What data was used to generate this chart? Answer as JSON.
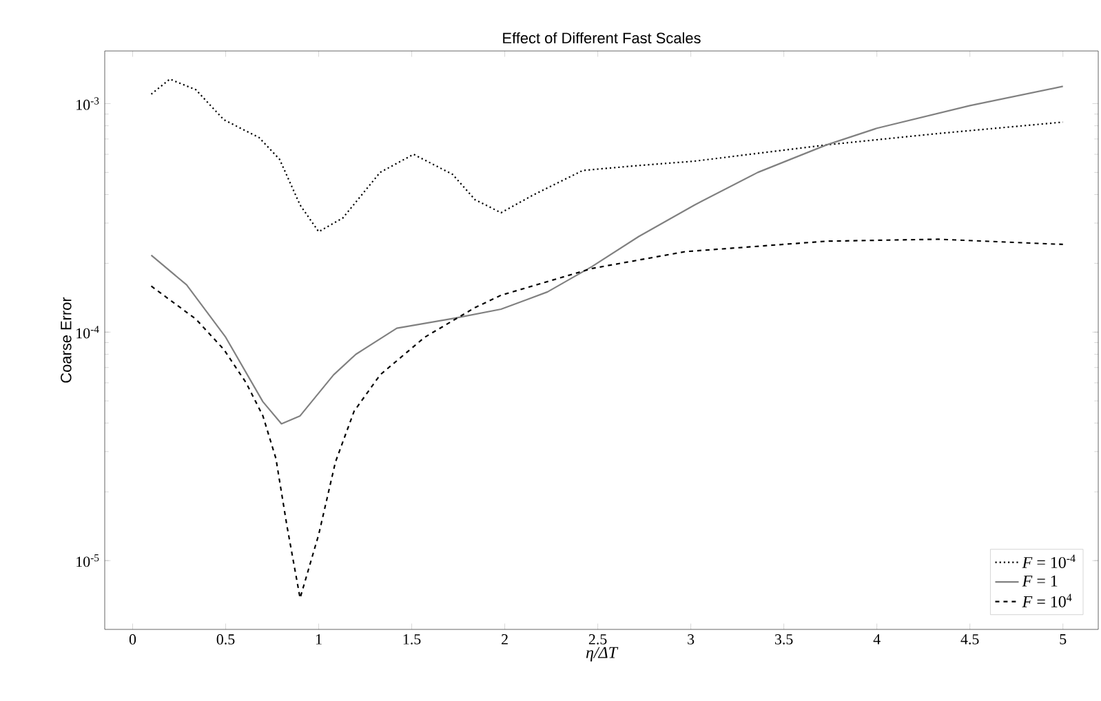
{
  "chart_data": {
    "type": "line",
    "title": "Effect of Different Fast Scales",
    "xlabel": "η/ΔT",
    "ylabel": "Coarse Error",
    "xlim": [
      -0.15,
      5.19
    ],
    "ylim": [
      5e-06,
      0.0017
    ],
    "xticks": [
      0,
      0.5,
      1,
      1.5,
      2,
      2.5,
      3,
      3.5,
      4,
      4.5,
      5
    ],
    "yticks": [
      {
        "value": 1e-05,
        "label": "10$^{-5}$"
      },
      {
        "value": 0.0001,
        "label": "10$^{-4}$"
      },
      {
        "value": 0.001,
        "label": "10$^{-3}$"
      }
    ],
    "log": "y",
    "legend": "bottom right",
    "series": [
      {
        "name": "*F* = 10$^{-4}$",
        "color": "#000000",
        "line_style": "dotted",
        "x": [
          0.1,
          0.2,
          0.34,
          0.49,
          0.68,
          0.79,
          0.9,
          1.0,
          1.13,
          1.33,
          1.51,
          1.72,
          1.84,
          1.98,
          2.15,
          2.42,
          2.72,
          3.02,
          3.73,
          4.33,
          5.0
        ],
        "values": [
          0.0011,
          0.00128,
          0.00115,
          0.00085,
          0.00071,
          0.00057,
          0.00036,
          0.000275,
          0.000316,
          0.0005,
          0.0006,
          0.00049,
          0.00038,
          0.000333,
          0.000397,
          0.00051,
          0.000536,
          0.00056,
          0.00066,
          0.00074,
          0.00083
        ]
      },
      {
        "name": "*F* = 1",
        "color": "#808080",
        "line_style": "solid",
        "x": [
          0.1,
          0.29,
          0.5,
          0.7,
          0.8,
          0.9,
          1.08,
          1.2,
          1.42,
          1.73,
          1.98,
          2.23,
          2.47,
          2.72,
          3.02,
          3.36,
          3.73,
          4.0,
          4.5,
          5.0
        ],
        "values": [
          0.000217,
          0.000161,
          9.5e-05,
          4.96e-05,
          3.97e-05,
          4.3e-05,
          6.5e-05,
          8e-05,
          0.000104,
          0.000115,
          0.000126,
          0.00015,
          0.000194,
          0.000262,
          0.00036,
          0.0005,
          0.00066,
          0.00078,
          0.00098,
          0.00119
        ]
      },
      {
        "name": "*F* = 10$^{4}$",
        "color": "#000000",
        "line_style": "dashed",
        "x": [
          0.1,
          0.34,
          0.49,
          0.61,
          0.7,
          0.77,
          0.83,
          0.9,
          1.0,
          1.09,
          1.19,
          1.33,
          1.57,
          1.84,
          1.98,
          2.47,
          2.97,
          3.73,
          4.33,
          5.0
        ],
        "values": [
          0.000159,
          0.000114,
          8.4e-05,
          6e-05,
          4.3e-05,
          2.8e-05,
          1.41e-05,
          6.85e-06,
          1.3e-05,
          2.7e-05,
          4.5e-05,
          6.5e-05,
          9.5e-05,
          0.000128,
          0.000145,
          0.00019,
          0.000225,
          0.00025,
          0.000255,
          0.000242
        ]
      }
    ]
  }
}
